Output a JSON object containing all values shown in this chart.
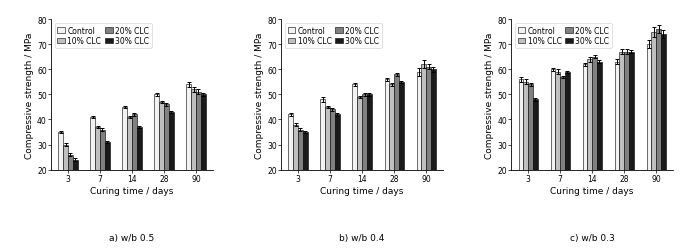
{
  "charts": [
    {
      "subtitle": "a) w/b 0.5",
      "ylabel": "Compressive strength / MPa",
      "xlabel": "Curing time / days",
      "ylim": [
        20,
        80
      ],
      "yticks": [
        20,
        30,
        40,
        50,
        60,
        70,
        80
      ],
      "curing_days": [
        "3",
        "7",
        "14",
        "28",
        "90"
      ],
      "series": {
        "Control": {
          "values": [
            35,
            41,
            45,
            50,
            54
          ],
          "errors": [
            0.5,
            0.5,
            0.5,
            0.5,
            1.0
          ]
        },
        "10% CLC": {
          "values": [
            30,
            37,
            41,
            47,
            52
          ],
          "errors": [
            0.5,
            0.5,
            0.5,
            0.5,
            1.0
          ]
        },
        "20% CLC": {
          "values": [
            26,
            36,
            42,
            46,
            51
          ],
          "errors": [
            0.5,
            0.5,
            0.5,
            0.5,
            1.0
          ]
        },
        "30% CLC": {
          "values": [
            24,
            31,
            37,
            43,
            50
          ],
          "errors": [
            0.5,
            0.5,
            0.5,
            0.5,
            0.5
          ]
        }
      }
    },
    {
      "subtitle": "b) w/b 0.4",
      "ylabel": "Compressive strength / MPa",
      "xlabel": "Curing time / days",
      "ylim": [
        20,
        80
      ],
      "yticks": [
        20,
        30,
        40,
        50,
        60,
        70,
        80
      ],
      "curing_days": [
        "3",
        "7",
        "14",
        "28",
        "90"
      ],
      "series": {
        "Control": {
          "values": [
            42,
            48,
            54,
            56,
            59
          ],
          "errors": [
            0.5,
            1.0,
            0.5,
            0.5,
            1.5
          ]
        },
        "10% CLC": {
          "values": [
            38,
            45,
            49,
            54,
            62
          ],
          "errors": [
            0.5,
            0.5,
            0.5,
            0.5,
            1.5
          ]
        },
        "20% CLC": {
          "values": [
            36,
            44,
            50,
            58,
            61
          ],
          "errors": [
            0.5,
            0.5,
            0.5,
            0.5,
            1.0
          ]
        },
        "30% CLC": {
          "values": [
            35,
            42,
            50,
            55,
            60
          ],
          "errors": [
            0.5,
            0.5,
            0.5,
            0.5,
            1.0
          ]
        }
      }
    },
    {
      "subtitle": "c) w/b 0.3",
      "ylabel": "Compressive strength / MPa",
      "xlabel": "Curing time / days",
      "ylim": [
        20,
        80
      ],
      "yticks": [
        20,
        30,
        40,
        50,
        60,
        70,
        80
      ],
      "curing_days": [
        "3",
        "7",
        "14",
        "28",
        "90"
      ],
      "series": {
        "Control": {
          "values": [
            56,
            60,
            62,
            63,
            70
          ],
          "errors": [
            1.0,
            0.5,
            0.5,
            1.0,
            1.5
          ]
        },
        "10% CLC": {
          "values": [
            55,
            59,
            64,
            67,
            75
          ],
          "errors": [
            1.0,
            1.0,
            1.0,
            1.0,
            2.0
          ]
        },
        "20% CLC": {
          "values": [
            54,
            57,
            65,
            67,
            76
          ],
          "errors": [
            0.5,
            0.5,
            0.5,
            1.0,
            1.5
          ]
        },
        "30% CLC": {
          "values": [
            48,
            59,
            63,
            67,
            74
          ],
          "errors": [
            0.5,
            0.5,
            0.5,
            0.5,
            1.5
          ]
        }
      }
    }
  ],
  "series_order": [
    "Control",
    "10% CLC",
    "20% CLC",
    "30% CLC"
  ],
  "colors": {
    "Control": "#f2f2f2",
    "10% CLC": "#bfbfbf",
    "20% CLC": "#808080",
    "30% CLC": "#1a1a1a"
  },
  "edgecolor": "#000000",
  "bar_width": 0.15,
  "legend_fontsize": 5.5,
  "tick_fontsize": 5.5,
  "label_fontsize": 6.5,
  "subtitle_fontsize": 6.5,
  "figsize": [
    6.8,
    2.51
  ],
  "dpi": 100
}
